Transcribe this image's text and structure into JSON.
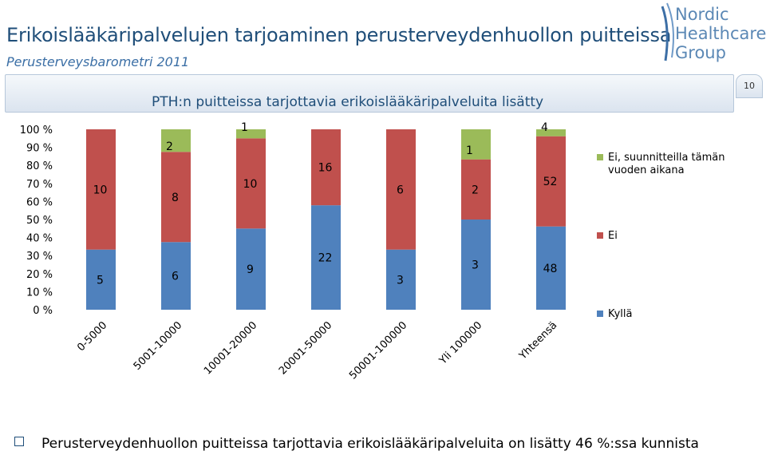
{
  "header": {
    "title": "Erikoislääkäripalvelujen tarjoaminen perusterveydenhuollon puitteissa",
    "subtitle": "Perusterveysbarometri 2011",
    "logo_lines": [
      "Nordic",
      "Healthcare",
      "Group"
    ],
    "page_number": "10"
  },
  "colors": {
    "blue": "#4f81bd",
    "red": "#c0504d",
    "green": "#9bbb59",
    "title": "#1f4e79"
  },
  "chart_data": {
    "type": "bar",
    "stacked": "percent",
    "title": "PTH:n puitteissa tarjottavia erikoislääkäripalveluita lisätty",
    "categories": [
      "0-5000",
      "5001-10000",
      "10001-20000",
      "20001-50000",
      "50001-100000",
      "Yli 100000",
      "Yhteensä"
    ],
    "series": [
      {
        "name": "Kyllä",
        "color": "#4f81bd",
        "values": [
          5,
          6,
          9,
          22,
          3,
          3,
          48
        ]
      },
      {
        "name": "Ei",
        "color": "#c0504d",
        "values": [
          10,
          8,
          10,
          16,
          6,
          2,
          52
        ]
      },
      {
        "name": "Ei, suunnitteilla tämän vuoden aikana",
        "color": "#9bbb59",
        "values": [
          0,
          2,
          1,
          0,
          0,
          1,
          4
        ]
      }
    ],
    "y_ticks": [
      "100 %",
      "90 %",
      "80 %",
      "70 %",
      "60 %",
      "50 %",
      "40 %",
      "30 %",
      "20 %",
      "10 %",
      "0 %"
    ],
    "ylim": [
      0,
      100
    ],
    "grid": false,
    "legend_position": "right",
    "legend": {
      "planned": "Ei, suunnitteilla tämän vuoden aikana",
      "no": "Ei",
      "yes": "Kyllä"
    }
  },
  "footer": {
    "text": "Perusterveydenhuollon puitteissa tarjottavia erikoislääkäripalveluita on lisätty 46 %:ssa kunnista"
  }
}
